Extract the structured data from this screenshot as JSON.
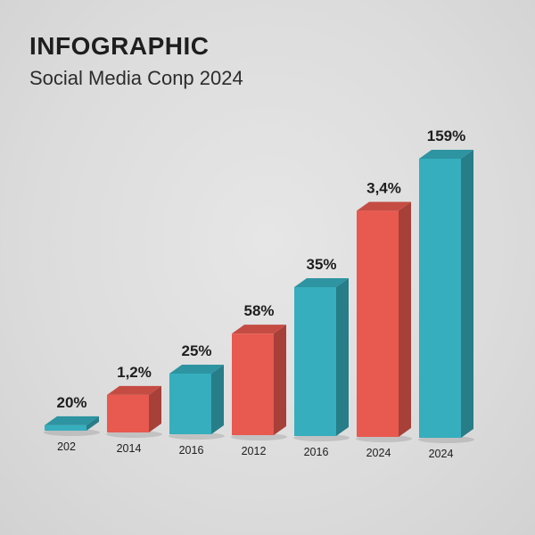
{
  "header": {
    "title": "INFOGRAPHIC",
    "subtitle": "Social Media Conp 2024"
  },
  "colors": {
    "teal": "#36aebd",
    "red": "#e8594f"
  },
  "chart_data": {
    "type": "bar",
    "title": "INFOGRAPHIC",
    "subtitle": "Social Media Conp 2024",
    "categories": [
      "202",
      "2014",
      "2016",
      "2012",
      "2016",
      "2024",
      "2024"
    ],
    "values": [
      0.5,
      3.4,
      5.5,
      9.2,
      13.5,
      20.5,
      25.3
    ],
    "data_labels": [
      "20%",
      "1,2%",
      "25%",
      "58%",
      "35%",
      "3,4%",
      "159%"
    ],
    "bar_colors": [
      "teal",
      "red",
      "teal",
      "red",
      "teal",
      "red",
      "teal"
    ],
    "xlabel": "",
    "ylabel": "",
    "ylim": [
      0,
      26
    ],
    "grid": false,
    "legend": "none"
  }
}
